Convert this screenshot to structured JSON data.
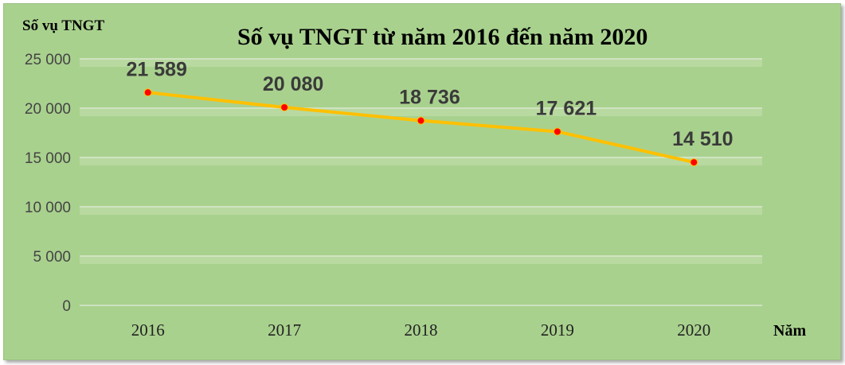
{
  "chart_data": {
    "type": "line",
    "title": "Số vụ TNGT từ năm 2016 đến năm 2020",
    "ylabel": "Số vụ TNGT",
    "xlabel": "Năm",
    "categories": [
      "2016",
      "2017",
      "2018",
      "2019",
      "2020"
    ],
    "series": [
      {
        "values": [
          21589,
          20080,
          18736,
          17621,
          14510
        ]
      }
    ],
    "data_labels": [
      "21 589",
      "20 080",
      "18 736",
      "17 621",
      "14 510"
    ],
    "ylim": [
      0,
      25000
    ],
    "yticks": [
      0,
      5000,
      10000,
      15000,
      20000,
      25000
    ],
    "ytick_labels": [
      "0",
      "5 000",
      "10 000",
      "15 000",
      "20 000",
      "25 000"
    ],
    "grid": true,
    "colors": {
      "background": "#a9d18e",
      "line": "#ffc000",
      "marker": "#ff0000",
      "grid": "#d9e8cd"
    }
  }
}
